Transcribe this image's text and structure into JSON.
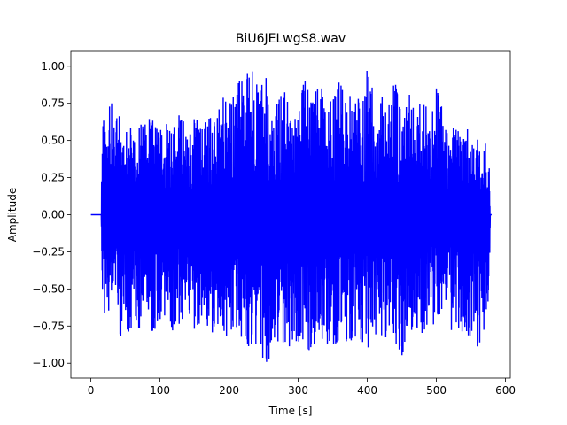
{
  "chart_data": {
    "type": "line",
    "title": "BiU6JELwgS8.wav",
    "xlabel": "Time [s]",
    "ylabel": "Amplitude",
    "xlim": [
      -29,
      607
    ],
    "ylim": [
      -1.1,
      1.1
    ],
    "x_ticks": [
      0,
      100,
      200,
      300,
      400,
      500,
      600
    ],
    "y_ticks": [
      -1.0,
      -0.75,
      -0.5,
      -0.25,
      0.0,
      0.25,
      0.5,
      0.75,
      1.0
    ],
    "x_tick_labels": [
      "0",
      "100",
      "200",
      "300",
      "400",
      "500",
      "600"
    ],
    "y_tick_labels": [
      "−1.00",
      "−0.75",
      "−0.50",
      "−0.25",
      "0.00",
      "0.25",
      "0.50",
      "0.75",
      "1.00"
    ],
    "grid": false,
    "line_color": "#0000ff",
    "series": [
      {
        "x": [
          0,
          15,
          16,
          17,
          20,
          25,
          30,
          35,
          40,
          45,
          50,
          60,
          70,
          80,
          90,
          100,
          110,
          120,
          130,
          140,
          150,
          160,
          170,
          180,
          190,
          200,
          210,
          220,
          230,
          240,
          250,
          260,
          270,
          280,
          290,
          300,
          310,
          320,
          330,
          340,
          350,
          360,
          370,
          380,
          390,
          400,
          410,
          420,
          430,
          440,
          450,
          460,
          470,
          480,
          490,
          500,
          510,
          515,
          520,
          522,
          525,
          530,
          540,
          550,
          560,
          570,
          577,
          578,
          580
        ],
        "upper": [
          0,
          0,
          0.45,
          0.7,
          0.7,
          0.72,
          0.75,
          0.55,
          0.75,
          0.6,
          0.55,
          0.6,
          0.65,
          0.6,
          0.7,
          0.58,
          0.7,
          0.65,
          0.68,
          0.55,
          0.7,
          0.6,
          0.75,
          0.6,
          0.8,
          0.75,
          0.85,
          0.95,
          1.0,
          0.9,
          0.98,
          0.85,
          0.75,
          0.85,
          0.65,
          0.8,
          0.9,
          0.75,
          0.95,
          0.7,
          0.8,
          0.9,
          0.75,
          0.85,
          0.75,
          0.98,
          0.85,
          0.8,
          0.75,
          0.9,
          0.65,
          0.82,
          0.7,
          0.85,
          0.75,
          0.85,
          0.7,
          0.6,
          0.4,
          0.55,
          0.6,
          0.6,
          0.6,
          0.55,
          0.55,
          0.5,
          0.35,
          0,
          0
        ],
        "lower": [
          0,
          0,
          -0.5,
          -0.7,
          -0.68,
          -0.72,
          -0.75,
          -0.6,
          -0.85,
          -0.8,
          -0.82,
          -0.75,
          -0.8,
          -0.7,
          -0.8,
          -0.75,
          -0.8,
          -0.8,
          -0.75,
          -0.7,
          -0.8,
          -0.75,
          -0.85,
          -0.75,
          -0.85,
          -0.8,
          -0.85,
          -0.9,
          -0.92,
          -0.95,
          -1.0,
          -0.98,
          -0.9,
          -0.85,
          -0.9,
          -0.85,
          -0.9,
          -0.92,
          -0.85,
          -0.9,
          -0.98,
          -0.85,
          -0.9,
          -0.82,
          -0.92,
          -0.9,
          -0.85,
          -0.88,
          -0.8,
          -0.85,
          -0.95,
          -0.8,
          -0.75,
          -0.8,
          -0.78,
          -0.75,
          -0.7,
          -0.6,
          -0.6,
          -0.98,
          -0.65,
          -0.75,
          -0.8,
          -0.82,
          -0.95,
          -0.75,
          -0.55,
          0,
          0
        ]
      }
    ]
  }
}
